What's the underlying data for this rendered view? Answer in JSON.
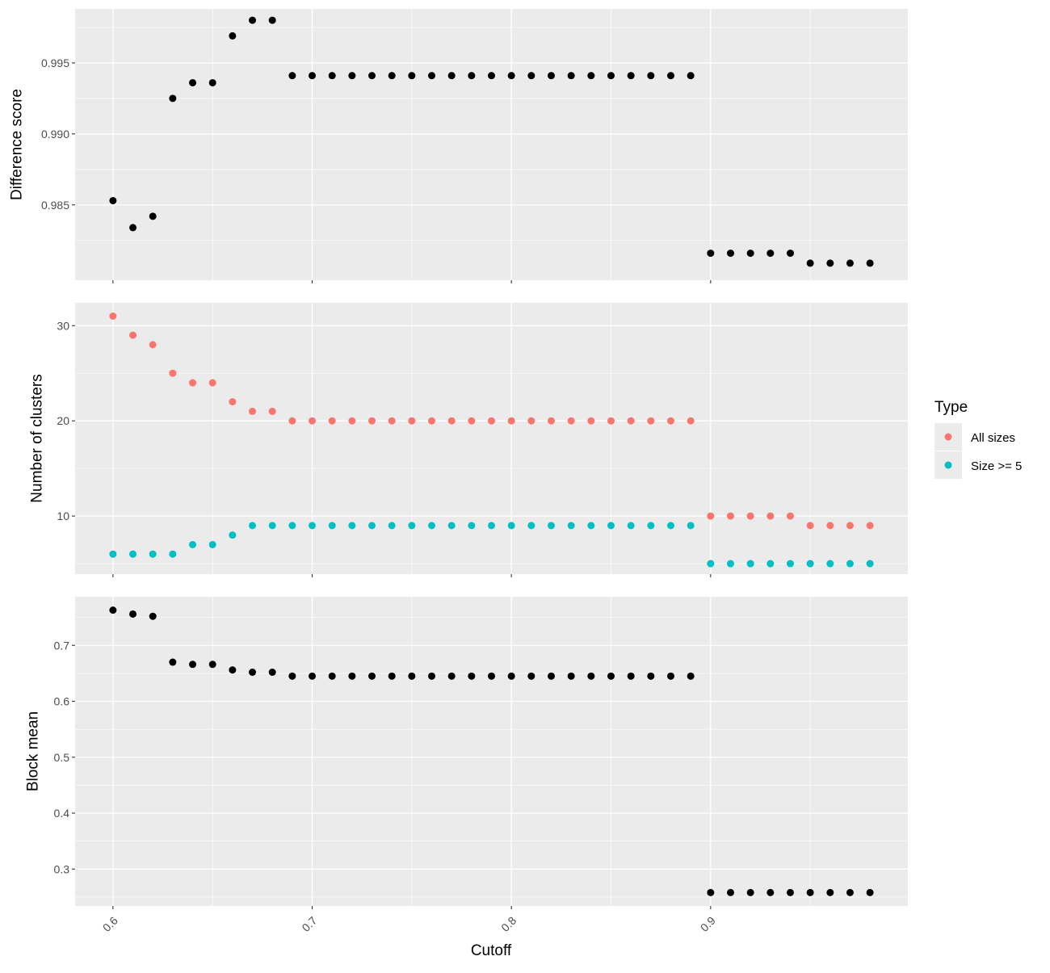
{
  "colors": {
    "panel_bg": "#EBEBEB",
    "grid_major": "#FFFFFF",
    "all_sizes": "#F8766D",
    "size_ge_5": "#00BFC4",
    "point_default": "#000000"
  },
  "legend": {
    "title": "Type",
    "entries": [
      "All sizes",
      "Size >= 5"
    ],
    "position": "right"
  },
  "chart_data": [
    {
      "type": "scatter",
      "ylabel": "Difference score",
      "xlabel": "",
      "ylim": [
        0.9797,
        0.9988
      ],
      "y_ticks": [
        0.985,
        0.99,
        0.995
      ],
      "y_tick_labels": [
        "0.985",
        "0.990",
        "0.995"
      ],
      "grid": true,
      "series": [
        {
          "x": [
            0.6,
            0.61,
            0.62,
            0.63,
            0.64,
            0.65,
            0.66,
            0.67,
            0.68,
            0.69,
            0.7,
            0.71,
            0.72,
            0.73,
            0.74,
            0.75,
            0.76,
            0.77,
            0.78,
            0.79,
            0.8,
            0.81,
            0.82,
            0.83,
            0.84,
            0.85,
            0.86,
            0.87,
            0.88,
            0.89,
            0.9,
            0.91,
            0.92,
            0.93,
            0.94,
            0.95,
            0.96,
            0.97,
            0.98
          ],
          "values": [
            0.9853,
            0.9834,
            0.9842,
            0.9925,
            0.9936,
            0.9936,
            0.9969,
            0.998,
            0.998,
            0.9941,
            0.9941,
            0.9941,
            0.9941,
            0.9941,
            0.9941,
            0.9941,
            0.9941,
            0.9941,
            0.9941,
            0.9941,
            0.9941,
            0.9941,
            0.9941,
            0.9941,
            0.9941,
            0.9941,
            0.9941,
            0.9941,
            0.9941,
            0.9941,
            0.9816,
            0.9816,
            0.9816,
            0.9816,
            0.9816,
            0.9809,
            0.9809,
            0.9809,
            0.9809
          ]
        }
      ]
    },
    {
      "type": "scatter",
      "ylabel": "Number of clusters",
      "xlabel": "",
      "ylim": [
        3.9,
        32.4
      ],
      "y_ticks": [
        10,
        20,
        30
      ],
      "y_tick_labels": [
        "10",
        "20",
        "30"
      ],
      "grid": true,
      "series": [
        {
          "name": "All sizes",
          "x": [
            0.6,
            0.61,
            0.62,
            0.63,
            0.64,
            0.65,
            0.66,
            0.67,
            0.68,
            0.69,
            0.7,
            0.71,
            0.72,
            0.73,
            0.74,
            0.75,
            0.76,
            0.77,
            0.78,
            0.79,
            0.8,
            0.81,
            0.82,
            0.83,
            0.84,
            0.85,
            0.86,
            0.87,
            0.88,
            0.89,
            0.9,
            0.91,
            0.92,
            0.93,
            0.94,
            0.95,
            0.96,
            0.97,
            0.98
          ],
          "values": [
            31,
            29,
            28,
            25,
            24,
            24,
            22,
            21,
            21,
            20,
            20,
            20,
            20,
            20,
            20,
            20,
            20,
            20,
            20,
            20,
            20,
            20,
            20,
            20,
            20,
            20,
            20,
            20,
            20,
            20,
            10,
            10,
            10,
            10,
            10,
            9,
            9,
            9,
            9
          ]
        },
        {
          "name": "Size >= 5",
          "x": [
            0.6,
            0.61,
            0.62,
            0.63,
            0.64,
            0.65,
            0.66,
            0.67,
            0.68,
            0.69,
            0.7,
            0.71,
            0.72,
            0.73,
            0.74,
            0.75,
            0.76,
            0.77,
            0.78,
            0.79,
            0.8,
            0.81,
            0.82,
            0.83,
            0.84,
            0.85,
            0.86,
            0.87,
            0.88,
            0.89,
            0.9,
            0.91,
            0.92,
            0.93,
            0.94,
            0.95,
            0.96,
            0.97,
            0.98
          ],
          "values": [
            6,
            6,
            6,
            6,
            7,
            7,
            8,
            9,
            9,
            9,
            9,
            9,
            9,
            9,
            9,
            9,
            9,
            9,
            9,
            9,
            9,
            9,
            9,
            9,
            9,
            9,
            9,
            9,
            9,
            9,
            5,
            5,
            5,
            5,
            5,
            5,
            5,
            5,
            5
          ]
        }
      ]
    },
    {
      "type": "scatter",
      "ylabel": "Block mean",
      "xlabel": "Cutoff",
      "ylim": [
        0.234,
        0.787
      ],
      "y_ticks": [
        0.3,
        0.4,
        0.5,
        0.6,
        0.7
      ],
      "y_tick_labels": [
        "0.3",
        "0.4",
        "0.5",
        "0.6",
        "0.7"
      ],
      "x_ticks": [
        0.6,
        0.7,
        0.8,
        0.9
      ],
      "x_tick_labels": [
        "0.6",
        "0.7",
        "0.8",
        "0.9"
      ],
      "grid": true,
      "series": [
        {
          "x": [
            0.6,
            0.61,
            0.62,
            0.63,
            0.64,
            0.65,
            0.66,
            0.67,
            0.68,
            0.69,
            0.7,
            0.71,
            0.72,
            0.73,
            0.74,
            0.75,
            0.76,
            0.77,
            0.78,
            0.79,
            0.8,
            0.81,
            0.82,
            0.83,
            0.84,
            0.85,
            0.86,
            0.87,
            0.88,
            0.89,
            0.9,
            0.91,
            0.92,
            0.93,
            0.94,
            0.95,
            0.96,
            0.97,
            0.98
          ],
          "values": [
            0.763,
            0.756,
            0.752,
            0.67,
            0.666,
            0.666,
            0.656,
            0.652,
            0.652,
            0.645,
            0.645,
            0.645,
            0.645,
            0.645,
            0.645,
            0.645,
            0.645,
            0.645,
            0.645,
            0.645,
            0.645,
            0.645,
            0.645,
            0.645,
            0.645,
            0.645,
            0.645,
            0.645,
            0.645,
            0.645,
            0.258,
            0.258,
            0.258,
            0.258,
            0.258,
            0.258,
            0.258,
            0.258,
            0.258
          ]
        }
      ]
    }
  ],
  "x_axis": {
    "xlim": [
      0.581,
      0.999
    ],
    "ticks": [
      0.6,
      0.7,
      0.8,
      0.9
    ],
    "tick_labels": [
      "0.6",
      "0.7",
      "0.8",
      "0.9"
    ],
    "title": "Cutoff"
  }
}
